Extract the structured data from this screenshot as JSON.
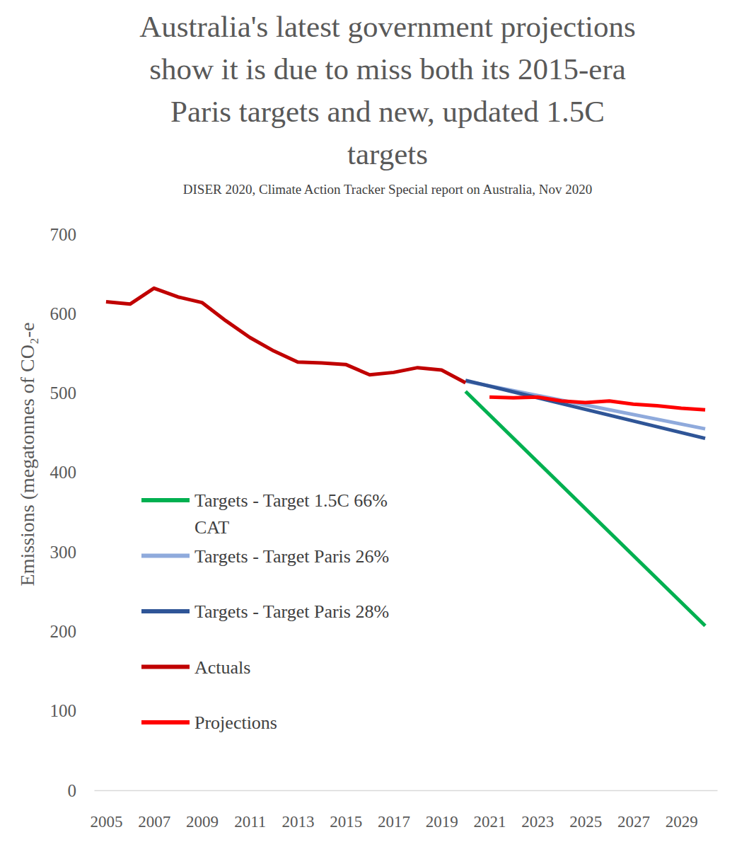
{
  "chart_data": {
    "type": "line",
    "title": "Australia's latest government projections\nshow it is due to miss both its 2015-era\nParis targets and new, updated 1.5C\ntargets",
    "subtitle": "DISER 2020, Climate Action Tracker Special report on Australia, Nov 2020",
    "y_label": "Emissions (megatonnes of CO₂-e",
    "xlim": [
      2004.5,
      2030.5
    ],
    "xticks": [
      2005,
      2007,
      2009,
      2011,
      2013,
      2015,
      2017,
      2019,
      2021,
      2023,
      2025,
      2027,
      2029
    ],
    "ylim": [
      0,
      700
    ],
    "yticks": [
      0,
      100,
      200,
      300,
      400,
      500,
      600,
      700
    ],
    "grid": false,
    "legend": "left",
    "series": [
      {
        "name": "Targets - Target 1.5C 66% CAT",
        "color": "#00b050",
        "x": [
          2020,
          2030
        ],
        "values": [
          502,
          207
        ]
      },
      {
        "name": "Targets - Target Paris 26%",
        "color": "#8faadc",
        "x": [
          2020,
          2030
        ],
        "values": [
          515,
          455
        ]
      },
      {
        "name": "Targets - Target Paris 28%",
        "color": "#2f5597",
        "x": [
          2020,
          2030
        ],
        "values": [
          516,
          443
        ]
      },
      {
        "name": "Actuals",
        "color": "#c00000",
        "x": [
          2005,
          2006,
          2007,
          2008,
          2009,
          2010,
          2011,
          2012,
          2013,
          2014,
          2015,
          2016,
          2017,
          2018,
          2019,
          2020
        ],
        "values": [
          615,
          612,
          632,
          621,
          614,
          591,
          570,
          553,
          539,
          538,
          536,
          523,
          526,
          532,
          529,
          513
        ]
      },
      {
        "name": "Projections",
        "color": "#ff0000",
        "x": [
          2021,
          2022,
          2023,
          2024,
          2025,
          2026,
          2027,
          2028,
          2029,
          2030
        ],
        "values": [
          495,
          494,
          495,
          490,
          488,
          490,
          486,
          484,
          481,
          479
        ]
      }
    ]
  }
}
